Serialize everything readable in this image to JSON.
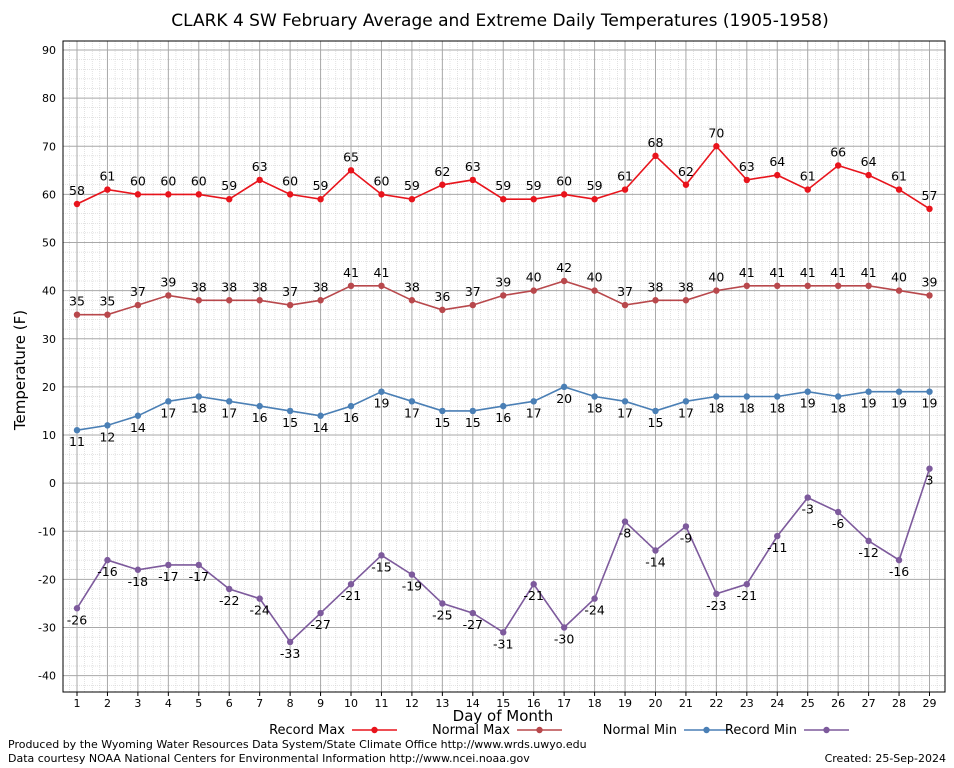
{
  "chart_data": {
    "type": "line",
    "title": "CLARK 4 SW February Average and Extreme Daily Temperatures (1905-1958)",
    "xlabel": "Day of Month",
    "ylabel": "Temperature (F)",
    "ylim": [
      -43,
      90
    ],
    "yticks": [
      -40,
      -30,
      -20,
      -10,
      0,
      10,
      20,
      30,
      40,
      50,
      60,
      70,
      80,
      90
    ],
    "x": [
      1,
      2,
      3,
      4,
      5,
      6,
      7,
      8,
      9,
      10,
      11,
      12,
      13,
      14,
      15,
      16,
      17,
      18,
      19,
      20,
      21,
      22,
      23,
      24,
      25,
      26,
      27,
      28,
      29
    ],
    "grid": true,
    "legend_position": "bottom",
    "series": [
      {
        "name": "Record Max",
        "color": "#e8141c",
        "values": [
          58,
          61,
          60,
          60,
          60,
          59,
          63,
          60,
          59,
          65,
          60,
          59,
          62,
          63,
          59,
          59,
          60,
          59,
          61,
          68,
          62,
          70,
          63,
          64,
          61,
          66,
          64,
          61,
          57
        ]
      },
      {
        "name": "Normal Max",
        "color": "#b8484c",
        "values": [
          35,
          35,
          37,
          39,
          38,
          38,
          38,
          37,
          38,
          41,
          41,
          38,
          36,
          37,
          39,
          40,
          42,
          40,
          37,
          38,
          38,
          40,
          41,
          41,
          41,
          41,
          41,
          40,
          39
        ]
      },
      {
        "name": "Normal Min",
        "color": "#4a7fb5",
        "values": [
          11,
          12,
          14,
          17,
          18,
          17,
          16,
          15,
          14,
          16,
          19,
          17,
          15,
          15,
          16,
          17,
          20,
          18,
          17,
          15,
          17,
          18,
          18,
          18,
          19,
          18,
          19,
          19,
          19
        ]
      },
      {
        "name": "Record Min",
        "color": "#7d5a9c",
        "values": [
          -26,
          -16,
          -18,
          -17,
          -17,
          -22,
          -24,
          -33,
          -27,
          -21,
          -15,
          -19,
          -25,
          -27,
          -31,
          -21,
          -30,
          -24,
          -8,
          -14,
          -9,
          -23,
          -21,
          -11,
          -3,
          -6,
          -12,
          -16,
          3
        ]
      }
    ]
  },
  "footer": {
    "produced_by": "Produced by the Wyoming Water Resources Data System/State Climate Office http://www.wrds.uwyo.edu",
    "courtesy": "Data courtesy NOAA National Centers for Environmental Information http://www.ncei.noaa.gov",
    "created": "Created:  25-Sep-2024"
  }
}
